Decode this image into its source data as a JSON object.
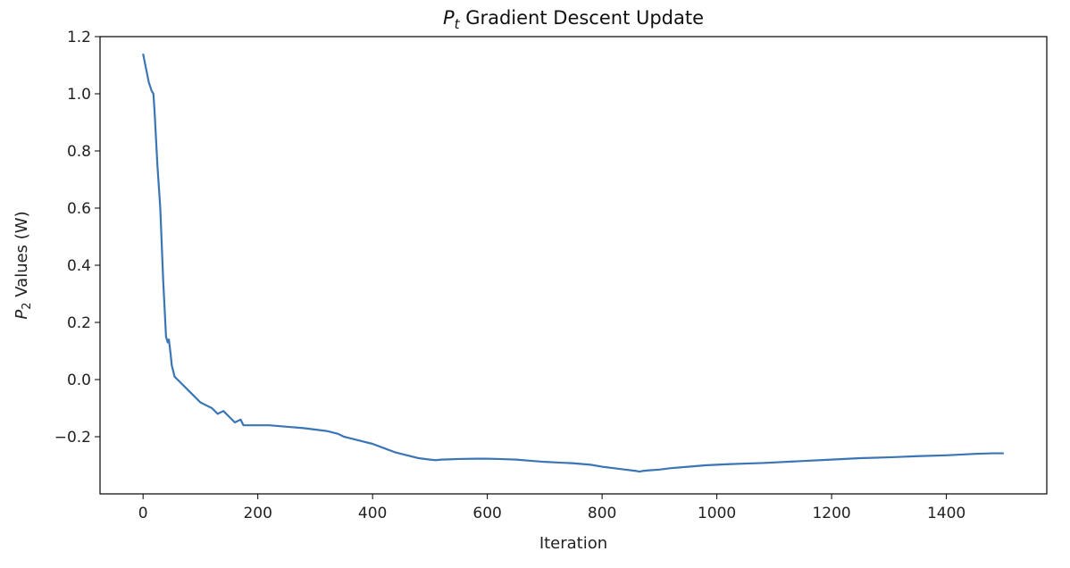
{
  "chart_data": {
    "type": "line",
    "title": {
      "symbol": "P",
      "subscript": "t",
      "text": " Gradient Descent Update"
    },
    "xlabel": "Iteration",
    "ylabel": {
      "symbol": "P",
      "subscript": "2",
      "text": " Values (W)"
    },
    "xlim": [
      -75,
      1575
    ],
    "ylim": [
      -0.4,
      1.2
    ],
    "xticks": [
      0,
      200,
      400,
      600,
      800,
      1000,
      1200,
      1400
    ],
    "xtick_labels": [
      "0",
      "200",
      "400",
      "600",
      "800",
      "1000",
      "1200",
      "1400"
    ],
    "yticks": [
      1.2,
      1.0,
      0.8,
      0.6,
      0.4,
      0.2,
      0.0,
      -0.2
    ],
    "ytick_labels": [
      "1.2",
      "1.0",
      "0.8",
      "0.6",
      "0.4",
      "0.2",
      "0.0",
      "−0.2"
    ],
    "grid": false,
    "series": [
      {
        "color": "#3a75b5",
        "x": [
          0,
          5,
          10,
          15,
          18,
          20,
          25,
          30,
          35,
          40,
          43,
          45,
          48,
          50,
          55,
          60,
          70,
          80,
          90,
          100,
          110,
          120,
          130,
          140,
          150,
          160,
          170,
          175,
          180,
          190,
          200,
          220,
          250,
          280,
          300,
          320,
          340,
          350,
          360,
          380,
          400,
          420,
          440,
          460,
          480,
          500,
          510,
          520,
          550,
          580,
          600,
          620,
          650,
          680,
          700,
          720,
          750,
          780,
          800,
          820,
          840,
          860,
          865,
          870,
          880,
          900,
          920,
          950,
          980,
          1000,
          1020,
          1050,
          1080,
          1100,
          1150,
          1200,
          1250,
          1300,
          1350,
          1400,
          1450,
          1480,
          1500
        ],
        "y": [
          1.14,
          1.09,
          1.04,
          1.01,
          1.0,
          0.94,
          0.75,
          0.6,
          0.35,
          0.15,
          0.13,
          0.14,
          0.09,
          0.05,
          0.01,
          0.0,
          -0.02,
          -0.04,
          -0.06,
          -0.08,
          -0.09,
          -0.1,
          -0.12,
          -0.11,
          -0.13,
          -0.15,
          -0.14,
          -0.16,
          -0.16,
          -0.16,
          -0.16,
          -0.16,
          -0.165,
          -0.17,
          -0.175,
          -0.18,
          -0.19,
          -0.2,
          -0.205,
          -0.215,
          -0.225,
          -0.24,
          -0.255,
          -0.265,
          -0.275,
          -0.28,
          -0.282,
          -0.28,
          -0.278,
          -0.277,
          -0.277,
          -0.278,
          -0.28,
          -0.285,
          -0.288,
          -0.29,
          -0.293,
          -0.298,
          -0.305,
          -0.31,
          -0.315,
          -0.32,
          -0.322,
          -0.32,
          -0.318,
          -0.315,
          -0.31,
          -0.305,
          -0.3,
          -0.298,
          -0.296,
          -0.294,
          -0.292,
          -0.29,
          -0.285,
          -0.28,
          -0.275,
          -0.272,
          -0.268,
          -0.265,
          -0.26,
          -0.258,
          -0.258
        ]
      }
    ]
  }
}
